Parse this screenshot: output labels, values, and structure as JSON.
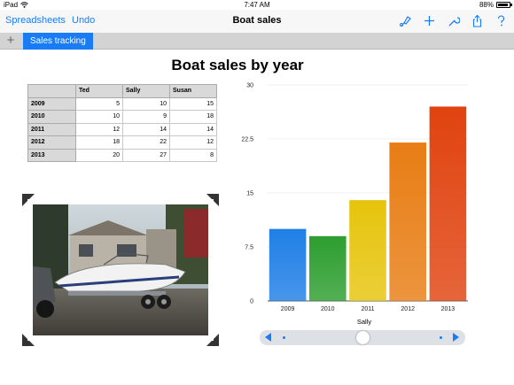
{
  "status": {
    "device": "iPad",
    "time": "7:47 AM",
    "battery": "88%",
    "battery_level": 0.88
  },
  "toolbar": {
    "back_label": "Spreadsheets",
    "undo_label": "Undo",
    "title": "Boat sales",
    "icons": [
      "paintbrush-icon",
      "plus-icon",
      "wrench-icon",
      "share-icon",
      "help-icon"
    ]
  },
  "tabs": {
    "add_label": "+",
    "items": [
      {
        "label": "Sales tracking"
      }
    ]
  },
  "sheet": {
    "title": "Boat sales by year"
  },
  "table": {
    "columns": [
      "",
      "Ted",
      "Sally",
      "Susan"
    ],
    "rows": [
      {
        "year": "2009",
        "values": [
          "5",
          "10",
          "15"
        ]
      },
      {
        "year": "2010",
        "values": [
          "10",
          "9",
          "18"
        ]
      },
      {
        "year": "2011",
        "values": [
          "12",
          "14",
          "14"
        ]
      },
      {
        "year": "2012",
        "values": [
          "18",
          "22",
          "12"
        ]
      },
      {
        "year": "2013",
        "values": [
          "20",
          "27",
          "8"
        ]
      }
    ]
  },
  "chart_data": {
    "type": "bar",
    "categories": [
      "2009",
      "2010",
      "2011",
      "2012",
      "2013"
    ],
    "series": [
      {
        "name": "Sally",
        "values": [
          10,
          9,
          14,
          22,
          27
        ]
      }
    ],
    "xlabel": "Sally",
    "ylabel": "",
    "ylim": [
      0,
      30
    ],
    "yticks": [
      "0",
      "7.5",
      "15",
      "22.5",
      "30"
    ],
    "grid": true,
    "colors": [
      "#1f7fe6",
      "#2d9e2f",
      "#e6c40c",
      "#e87d14",
      "#e0430f"
    ]
  },
  "slider": {
    "position": 0.5,
    "colors": {
      "accent": "#1a7cf5"
    }
  },
  "colors": {
    "accent": "#1a7cf5",
    "toolbar_bg": "#f7f7f7"
  }
}
